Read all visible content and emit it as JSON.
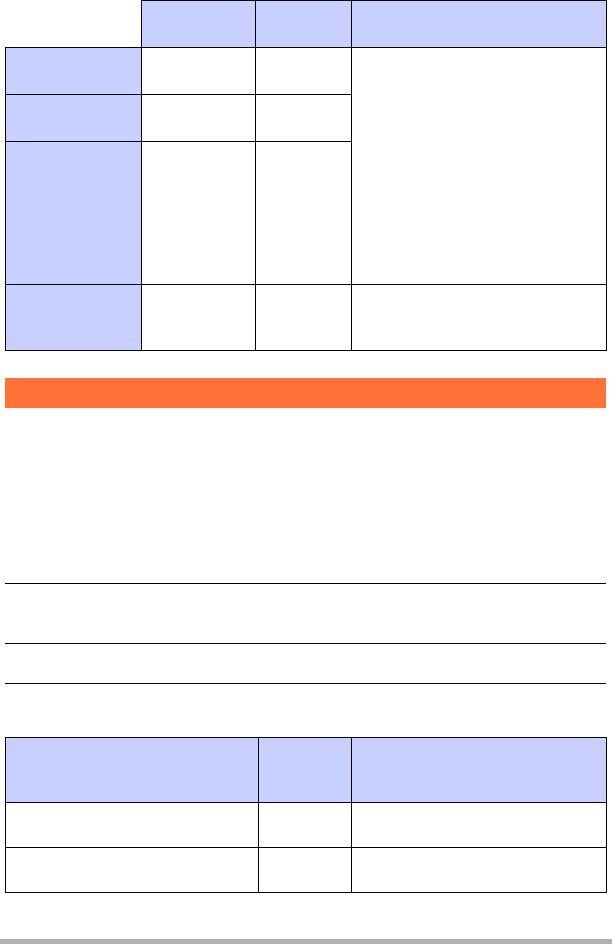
{
  "colors": {
    "header_fill": "#c8d0ff",
    "section_bar": "#ff7238",
    "footer_bar": "#b0b0b0"
  },
  "table1": {
    "headers": [
      "",
      "",
      ""
    ],
    "row_labels": [
      "",
      "",
      "",
      ""
    ],
    "cells": [
      [
        "",
        "",
        ""
      ],
      [
        "",
        ""
      ],
      [
        "",
        ""
      ],
      [
        "",
        "",
        ""
      ]
    ]
  },
  "section": {
    "title": ""
  },
  "table2": {
    "headers": [
      "",
      "",
      ""
    ],
    "rows": [
      [
        "",
        "",
        ""
      ],
      [
        "",
        "",
        ""
      ]
    ]
  }
}
